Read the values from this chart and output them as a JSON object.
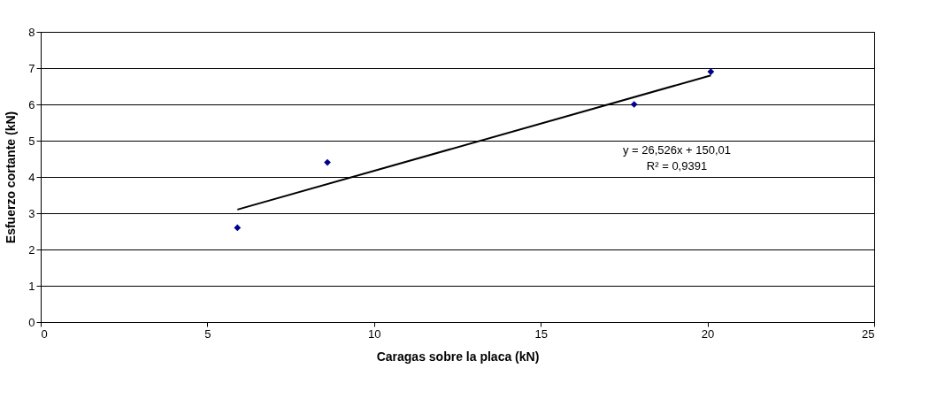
{
  "chart_data": {
    "type": "scatter",
    "xlabel": "Caragas sobre la placa (kN)",
    "ylabel": "Esfuerzo cortante (kN)",
    "xlim": [
      0,
      25
    ],
    "xticks": [
      0,
      5,
      10,
      15,
      20,
      25
    ],
    "ylim": [
      0,
      8
    ],
    "yticks": [
      0,
      1,
      2,
      3,
      4,
      5,
      6,
      7,
      8
    ],
    "grid": "y",
    "marker": "diamond",
    "series": [
      {
        "color": "#00008b",
        "x": [
          5.9,
          8.6,
          17.8,
          20.1
        ],
        "values": [
          2.6,
          4.4,
          6.0,
          6.9
        ]
      },
      {
        "type": "line",
        "color": "#000000",
        "x": [
          5.9,
          20.1
        ],
        "values": [
          3.1,
          6.8
        ],
        "line_style": "solid",
        "marker": "none"
      }
    ],
    "annotations": [
      "y = 26,526x + 150,01",
      "R² = 0,9391"
    ]
  }
}
